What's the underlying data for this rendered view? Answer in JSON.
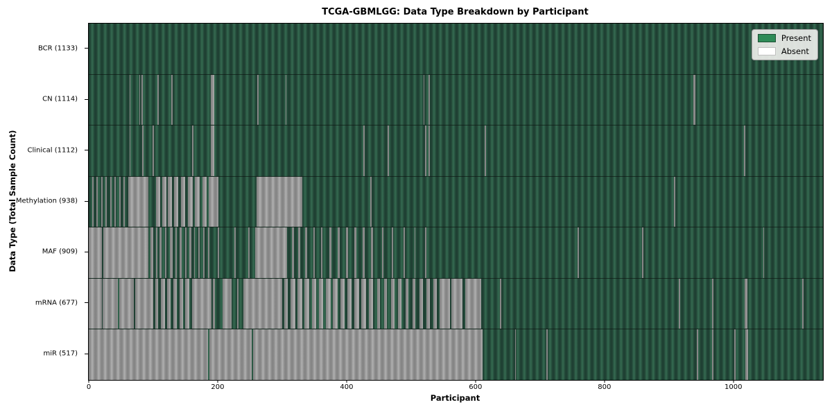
{
  "chart_data": {
    "type": "heatmap",
    "title": "TCGA-GBMLGG: Data Type Breakdown by Participant",
    "xlabel": "Participant",
    "ylabel": "Data Type (Total Sample Count)",
    "x_ticks": [
      0,
      200,
      400,
      600,
      800,
      1000
    ],
    "x_max": 1139,
    "grid": false,
    "legend_position": "upper right",
    "legend": {
      "present": "Present",
      "absent": "Absent"
    },
    "colors": {
      "present": "#2e8b57",
      "present_shade_dark": "#1f4033",
      "absent": "#ffffff",
      "absent_shade_gray": "#9b9b9b"
    },
    "rows": [
      {
        "label": "BCR (1133)",
        "data_type": "BCR",
        "total_samples": 1133,
        "absent_ranges": []
      },
      {
        "label": "CN (1114)",
        "data_type": "CN",
        "total_samples": 1114,
        "absent_ranges": [
          [
            63,
            65
          ],
          [
            78,
            80
          ],
          [
            82,
            84
          ],
          [
            107,
            109
          ],
          [
            128,
            130
          ],
          [
            189,
            195
          ],
          [
            261,
            263
          ],
          [
            305,
            307
          ],
          [
            519,
            521
          ],
          [
            527,
            529
          ],
          [
            938,
            941
          ]
        ]
      },
      {
        "label": "Clinical (1112)",
        "data_type": "Clinical",
        "total_samples": 1112,
        "absent_ranges": [
          [
            63,
            65
          ],
          [
            83,
            85
          ],
          [
            99,
            101
          ],
          [
            160,
            162
          ],
          [
            189,
            195
          ],
          [
            426,
            428
          ],
          [
            464,
            466
          ],
          [
            522,
            524
          ],
          [
            527,
            529
          ],
          [
            614,
            616
          ],
          [
            1016,
            1019
          ]
        ]
      },
      {
        "label": "Methylation (938)",
        "data_type": "Methylation",
        "total_samples": 938,
        "absent_ranges": [
          [
            5,
            7
          ],
          [
            12,
            14
          ],
          [
            19,
            21
          ],
          [
            26,
            28
          ],
          [
            33,
            35
          ],
          [
            40,
            42
          ],
          [
            47,
            49
          ],
          [
            54,
            56
          ],
          [
            61,
            93
          ],
          [
            104,
            111
          ],
          [
            114,
            120
          ],
          [
            123,
            129
          ],
          [
            132,
            139
          ],
          [
            143,
            150
          ],
          [
            154,
            161
          ],
          [
            165,
            172
          ],
          [
            176,
            183
          ],
          [
            186,
            201
          ],
          [
            260,
            331
          ],
          [
            437,
            439
          ],
          [
            908,
            910
          ]
        ]
      },
      {
        "label": "MAF (909)",
        "data_type": "MAF",
        "total_samples": 909,
        "absent_ranges": [
          [
            0,
            20
          ],
          [
            23,
            93
          ],
          [
            96,
            100
          ],
          [
            104,
            107
          ],
          [
            110,
            113
          ],
          [
            118,
            121
          ],
          [
            126,
            130
          ],
          [
            134,
            137
          ],
          [
            141,
            144
          ],
          [
            149,
            152
          ],
          [
            156,
            159
          ],
          [
            163,
            165
          ],
          [
            170,
            172
          ],
          [
            178,
            180
          ],
          [
            185,
            187
          ],
          [
            200,
            202
          ],
          [
            226,
            228
          ],
          [
            247,
            249
          ],
          [
            258,
            308
          ],
          [
            315,
            318
          ],
          [
            325,
            328
          ],
          [
            336,
            339
          ],
          [
            348,
            351
          ],
          [
            360,
            363
          ],
          [
            373,
            376
          ],
          [
            386,
            389
          ],
          [
            399,
            402
          ],
          [
            412,
            415
          ],
          [
            425,
            428
          ],
          [
            438,
            441
          ],
          [
            455,
            457
          ],
          [
            470,
            472
          ],
          [
            488,
            490
          ],
          [
            505,
            507
          ],
          [
            522,
            524
          ],
          [
            758,
            760
          ],
          [
            858,
            860
          ],
          [
            1046,
            1048
          ]
        ]
      },
      {
        "label": "mRNA (677)",
        "data_type": "mRNA",
        "total_samples": 677,
        "absent_ranges": [
          [
            0,
            20
          ],
          [
            22,
            45
          ],
          [
            47,
            70
          ],
          [
            72,
            100
          ],
          [
            103,
            108
          ],
          [
            112,
            118
          ],
          [
            122,
            127
          ],
          [
            131,
            137
          ],
          [
            141,
            146
          ],
          [
            150,
            156
          ],
          [
            160,
            190
          ],
          [
            193,
            196
          ],
          [
            208,
            222
          ],
          [
            230,
            232
          ],
          [
            240,
            300
          ],
          [
            303,
            309
          ],
          [
            313,
            320
          ],
          [
            324,
            331
          ],
          [
            335,
            342
          ],
          [
            346,
            353
          ],
          [
            357,
            364
          ],
          [
            368,
            375
          ],
          [
            379,
            386
          ],
          [
            390,
            397
          ],
          [
            401,
            408
          ],
          [
            412,
            419
          ],
          [
            423,
            430
          ],
          [
            434,
            441
          ],
          [
            447,
            452
          ],
          [
            458,
            463
          ],
          [
            469,
            474
          ],
          [
            480,
            485
          ],
          [
            491,
            496
          ],
          [
            502,
            507
          ],
          [
            513,
            518
          ],
          [
            524,
            529
          ],
          [
            535,
            540
          ],
          [
            544,
            560
          ],
          [
            563,
            580
          ],
          [
            584,
            609
          ],
          [
            638,
            640
          ],
          [
            915,
            917
          ],
          [
            967,
            969
          ],
          [
            1018,
            1022
          ],
          [
            1107,
            1109
          ]
        ]
      },
      {
        "label": "miR (517)",
        "data_type": "miR",
        "total_samples": 517,
        "absent_ranges": [
          [
            0,
            185
          ],
          [
            187,
            253
          ],
          [
            255,
            611
          ],
          [
            661,
            663
          ],
          [
            710,
            712
          ],
          [
            943,
            945
          ],
          [
            967,
            969
          ],
          [
            1001,
            1003
          ],
          [
            1019,
            1023
          ]
        ]
      }
    ]
  }
}
